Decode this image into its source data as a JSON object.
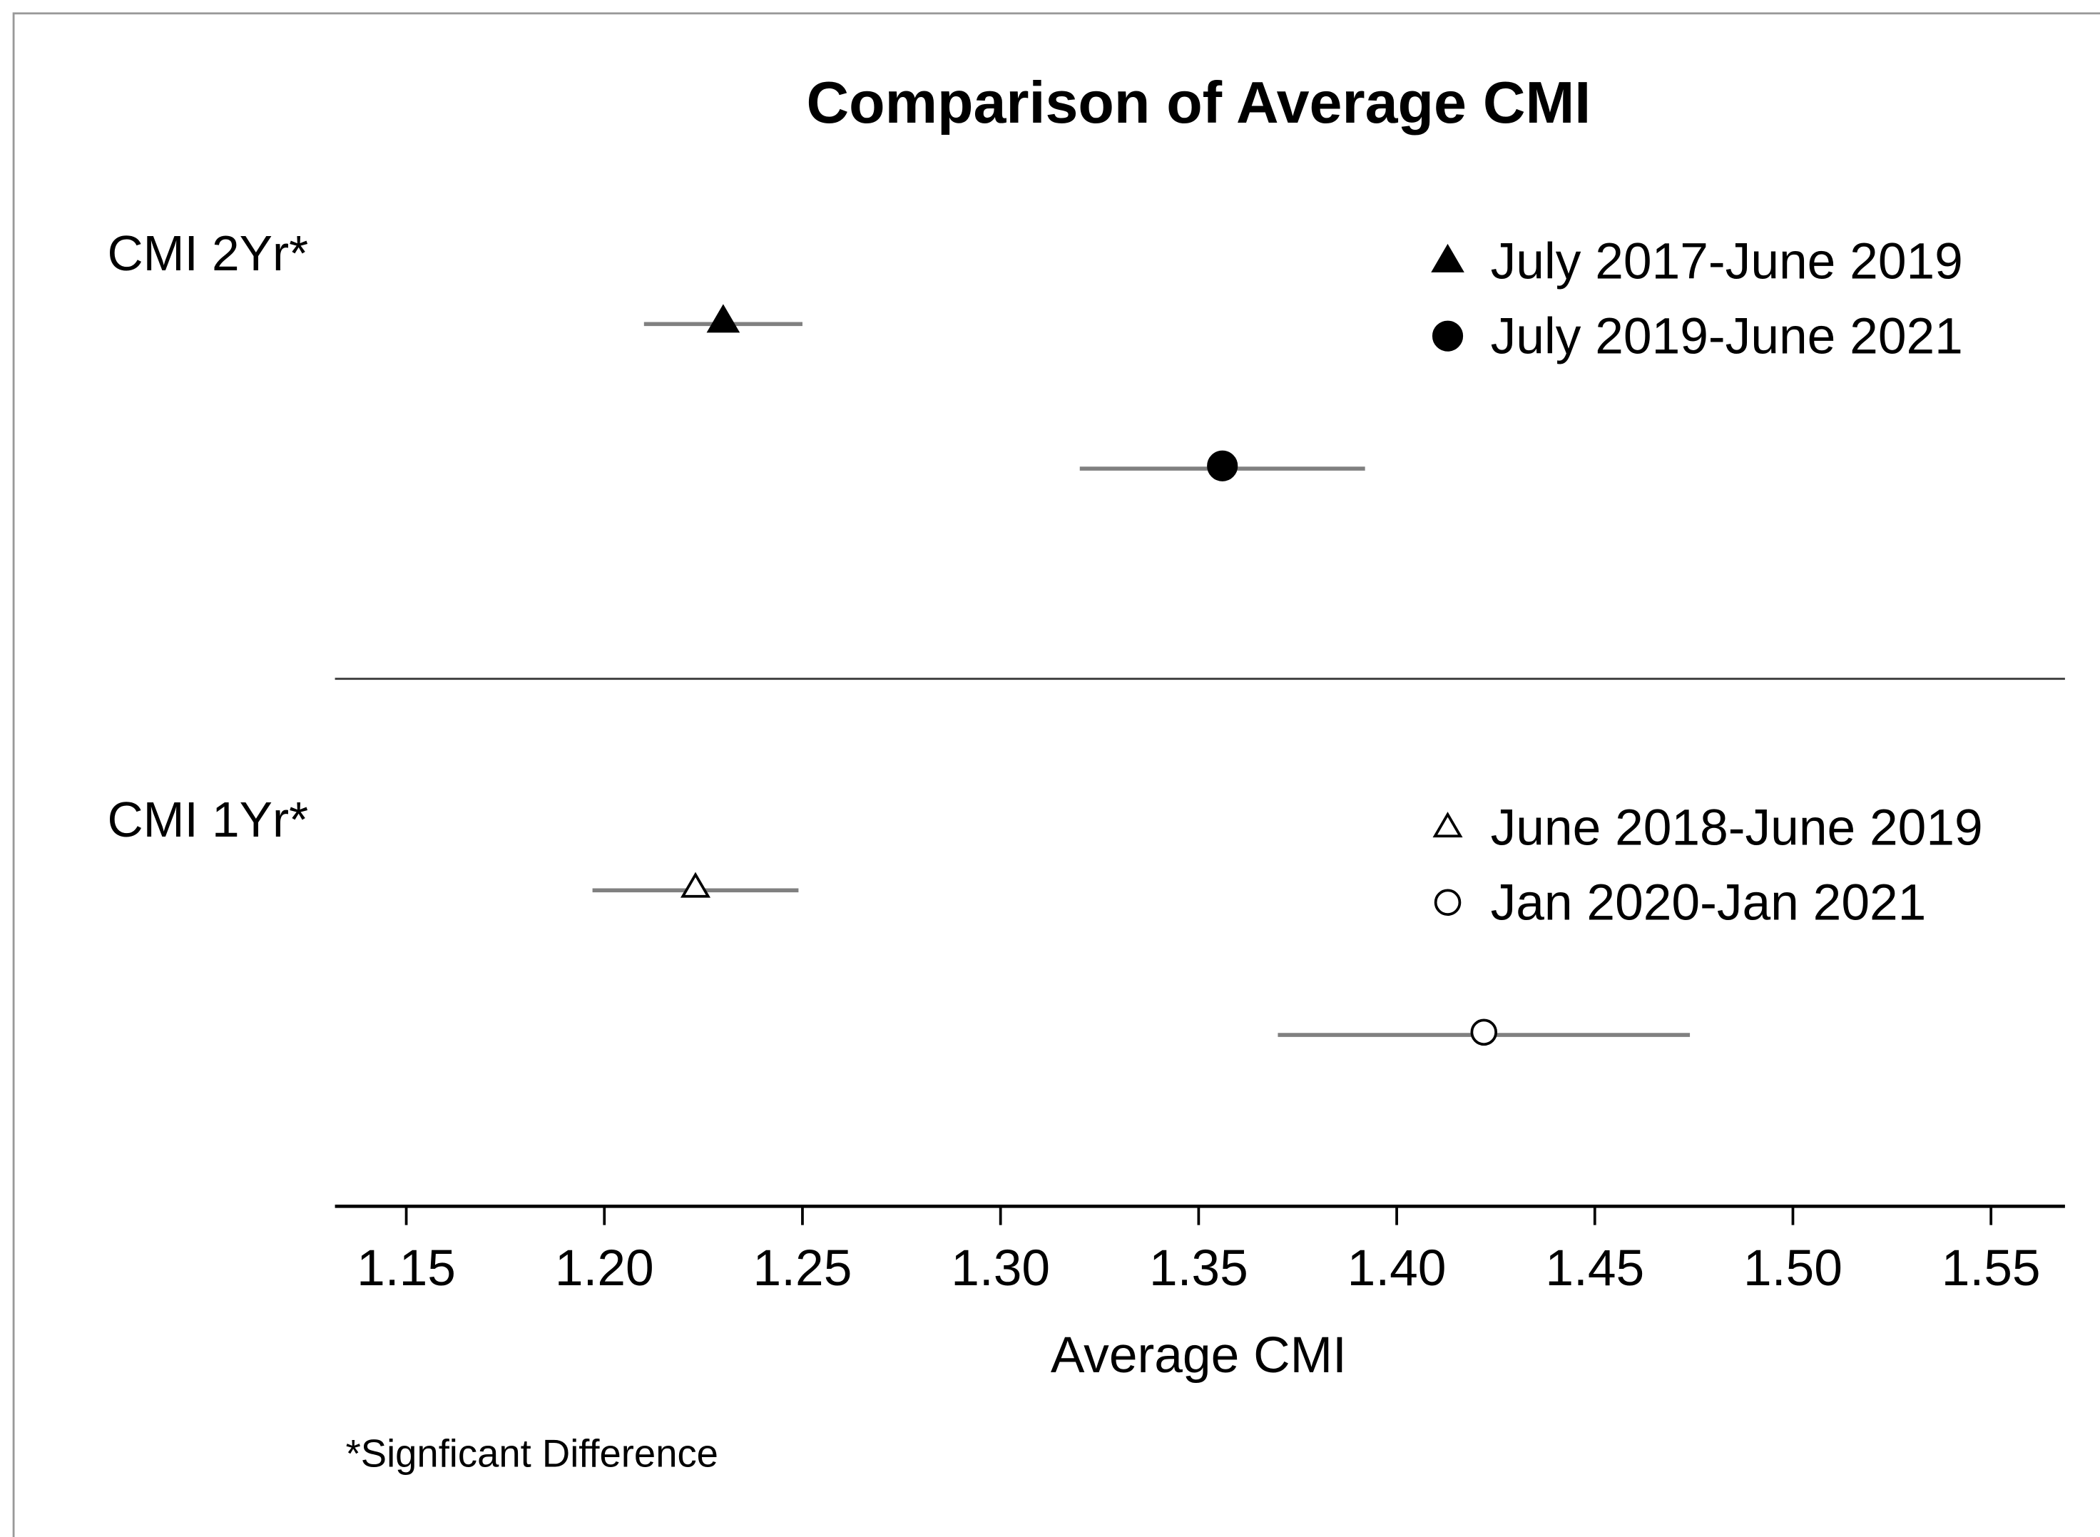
{
  "chart_data": {
    "type": "dot-errorbar",
    "title": "Comparison of Average CMI",
    "xlabel": "Average CMI",
    "footnote": "*Signficant Difference",
    "xlim": [
      1.132,
      1.568
    ],
    "xticks": [
      1.15,
      {
        "value": 1.2,
        "label": "1.20"
      },
      1.25,
      {
        "value": 1.3,
        "label": "1.30"
      },
      1.35,
      {
        "value": 1.4,
        "label": "1.40"
      },
      1.45,
      {
        "value": 1.5,
        "label": "1.50"
      },
      1.55
    ],
    "error_color": "#808080",
    "groups": [
      {
        "label": "CMI 2Yr*",
        "series": [
          {
            "name": "July 2017-June 2019",
            "marker": "triangle",
            "filled": true,
            "color": "#000000",
            "values": [
              1.23
            ],
            "errors": [
              0.02
            ]
          },
          {
            "name": "July 2019-June 2021",
            "marker": "circle",
            "filled": true,
            "color": "#000000",
            "values": [
              1.356
            ],
            "errors": [
              0.036
            ]
          }
        ]
      },
      {
        "label": "CMI 1Yr*",
        "series": [
          {
            "name": "June 2018-June 2019",
            "marker": "triangle",
            "filled": false,
            "color": "#000000",
            "values": [
              1.223
            ],
            "errors": [
              0.026
            ]
          },
          {
            "name": "Jan 2020-Jan 2021",
            "marker": "circle",
            "filled": false,
            "color": "#000000",
            "values": [
              1.422
            ],
            "errors": [
              0.052
            ]
          }
        ]
      }
    ]
  }
}
